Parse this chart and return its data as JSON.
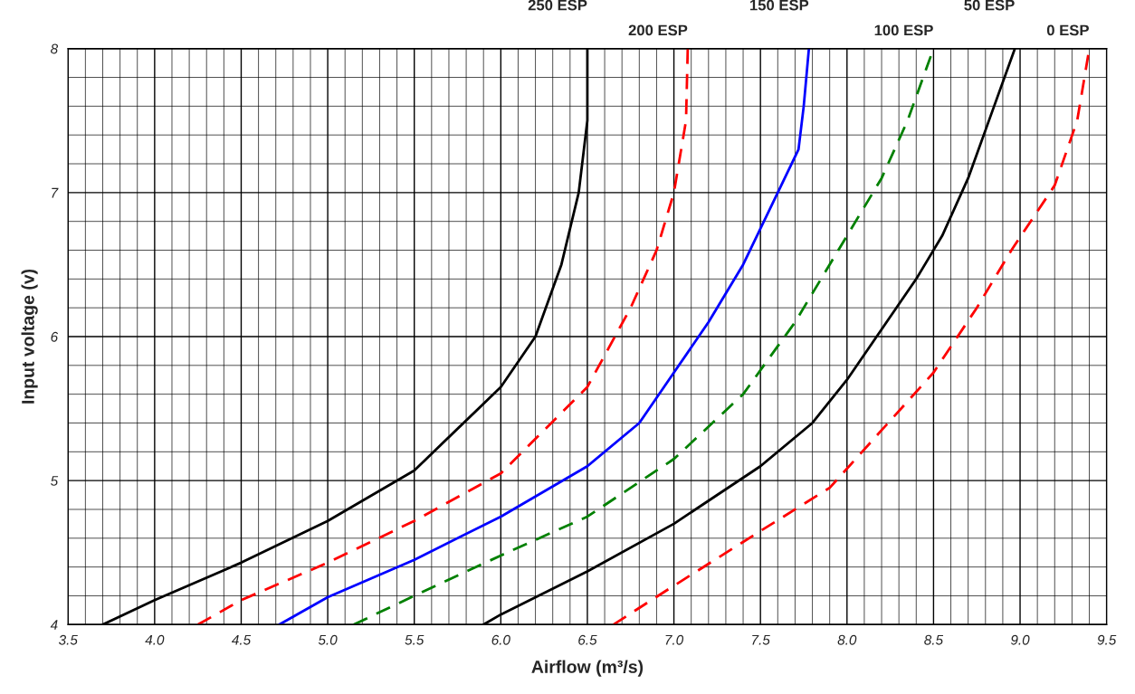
{
  "chart_data": {
    "type": "line",
    "xlabel": "Airflow (m³/s)",
    "ylabel": "Input voltage (v)",
    "xlim": [
      3.5,
      9.5
    ],
    "ylim": [
      4,
      8
    ],
    "xticks": [
      3.5,
      {
        "value": 4,
        "label": "4.0"
      },
      4.5,
      {
        "value": 5,
        "label": "5.0"
      },
      5.5,
      {
        "value": 6,
        "label": "6.0"
      },
      6.5,
      {
        "value": 7,
        "label": "7.0"
      },
      7.5,
      {
        "value": 8,
        "label": "8.0"
      },
      8.5,
      {
        "value": 9,
        "label": "9.0"
      },
      9.5
    ],
    "yticks": [
      4,
      5,
      6,
      7,
      8
    ],
    "grid": true,
    "legend": false,
    "marker": "none",
    "series": [
      {
        "name": "250 ESP",
        "color": "#000000",
        "line_style": "solid",
        "x": [
          3.7,
          4.0,
          4.5,
          5.0,
          5.5,
          6.0,
          6.2,
          6.35,
          6.45,
          6.5,
          6.5
        ],
        "values": [
          4,
          4.17,
          4.43,
          4.72,
          5.07,
          5.65,
          6.0,
          6.5,
          7.0,
          7.5,
          8
        ]
      },
      {
        "name": "200 ESP",
        "color": "#ff0000",
        "line_style": "dashed",
        "x": [
          4.25,
          4.5,
          5.0,
          5.5,
          6.0,
          6.5,
          6.75,
          6.9,
          7.0,
          7.07,
          7.08
        ],
        "values": [
          4,
          4.17,
          4.43,
          4.72,
          5.05,
          5.65,
          6.2,
          6.6,
          7.0,
          7.5,
          8
        ]
      },
      {
        "name": "150 ESP",
        "color": "#0000ff",
        "line_style": "solid",
        "x": [
          4.72,
          5.0,
          5.5,
          6.0,
          6.5,
          6.8,
          7.0,
          7.2,
          7.4,
          7.6,
          7.72,
          7.75,
          7.78
        ],
        "values": [
          4,
          4.19,
          4.45,
          4.75,
          5.1,
          5.4,
          5.75,
          6.1,
          6.5,
          7.0,
          7.3,
          7.6,
          8
        ]
      },
      {
        "name": "100 ESP",
        "color": "#008000",
        "line_style": "dashed",
        "x": [
          5.15,
          5.5,
          6.0,
          6.5,
          7.0,
          7.4,
          7.7,
          7.95,
          8.2,
          8.35,
          8.5
        ],
        "values": [
          4,
          4.2,
          4.48,
          4.75,
          5.15,
          5.6,
          6.1,
          6.6,
          7.1,
          7.5,
          8
        ]
      },
      {
        "name": "50 ESP",
        "color": "#000000",
        "line_style": "solid",
        "x": [
          5.9,
          6.0,
          6.5,
          7.0,
          7.5,
          7.8,
          8.0,
          8.2,
          8.4,
          8.55,
          8.7,
          8.85,
          8.97
        ],
        "values": [
          4,
          4.07,
          4.37,
          4.7,
          5.1,
          5.4,
          5.7,
          6.05,
          6.4,
          6.7,
          7.1,
          7.6,
          8
        ]
      },
      {
        "name": "0 ESP",
        "color": "#ff0000",
        "line_style": "dashed",
        "x": [
          6.65,
          7.0,
          7.5,
          7.9,
          8.2,
          8.5,
          8.75,
          8.95,
          9.2,
          9.33,
          9.4
        ],
        "values": [
          4,
          4.27,
          4.65,
          4.95,
          5.35,
          5.75,
          6.2,
          6.6,
          7.05,
          7.5,
          8
        ]
      }
    ]
  }
}
